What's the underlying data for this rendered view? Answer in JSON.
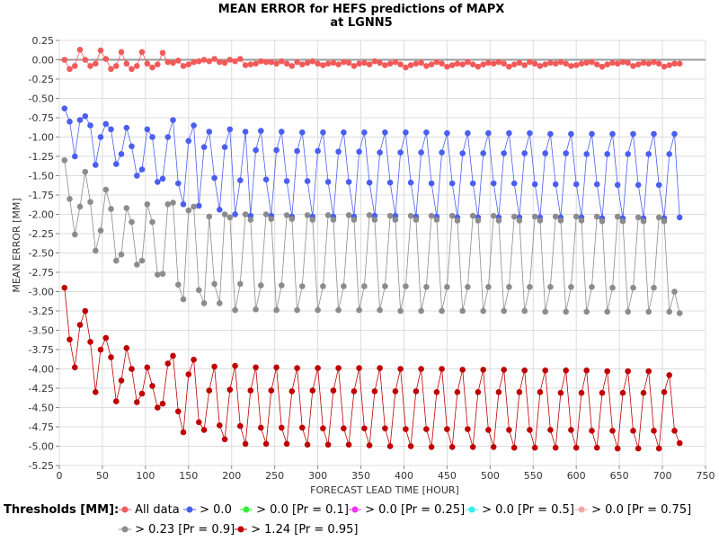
{
  "chart_data": {
    "type": "scatter",
    "title": "MEAN ERROR for HEFS predictions of MAPX",
    "subtitle": "at LGNN5",
    "xlabel": "FORECAST LEAD TIME [HOUR]",
    "ylabel": "MEAN ERROR [MM]",
    "xlim": [
      0,
      750
    ],
    "ylim": [
      -5.25,
      0.25
    ],
    "xticks": [
      "0",
      "50",
      "100",
      "150",
      "200",
      "250",
      "300",
      "350",
      "400",
      "450",
      "500",
      "550",
      "600",
      "650",
      "700",
      "750"
    ],
    "yticks": [
      "0.25",
      "0.00",
      "-0.25",
      "-0.50",
      "-0.75",
      "-1.00",
      "-1.25",
      "-1.50",
      "-1.75",
      "-2.00",
      "-2.25",
      "-2.50",
      "-2.75",
      "-3.00",
      "-3.25",
      "-3.50",
      "-3.75",
      "-4.00",
      "-4.25",
      "-4.50",
      "-4.75",
      "-5.00",
      "-5.25"
    ],
    "reference_line_y": 0,
    "legend_title": "Thresholds [MM]:",
    "legend": [
      {
        "name": "All data",
        "color": "#f25a5a"
      },
      {
        "name": "> 0.0",
        "color": "#4a5ff0"
      },
      {
        "name": "> 0.0 [Pr = 0.1]",
        "color": "#33ee33"
      },
      {
        "name": "> 0.0 [Pr = 0.25]",
        "color": "#ee33ee"
      },
      {
        "name": "> 0.0 [Pr = 0.5]",
        "color": "#33eeee"
      },
      {
        "name": "> 0.0 [Pr = 0.75]",
        "color": "#f5a5a5"
      },
      {
        "name": "> 0.23 [Pr = 0.9]",
        "color": "#8c8c8c"
      },
      {
        "name": "> 1.24 [Pr = 0.95]",
        "color": "#c00000"
      }
    ],
    "series": [
      {
        "name": "All data",
        "color": "#f25a5a",
        "x": [
          6,
          12,
          18,
          24,
          30,
          36,
          42,
          48,
          54,
          60,
          66,
          72,
          78,
          84,
          90,
          96,
          102,
          108,
          114,
          120,
          126,
          132,
          138,
          144,
          150,
          156,
          162,
          168,
          174,
          180,
          186,
          192,
          198,
          204,
          210,
          216,
          222,
          228,
          234,
          240,
          246,
          252,
          258,
          264,
          270,
          276,
          282,
          288,
          294,
          300,
          306,
          312,
          318,
          324,
          330,
          336,
          342,
          348,
          354,
          360,
          366,
          372,
          378,
          384,
          390,
          396,
          402,
          408,
          414,
          420,
          426,
          432,
          438,
          444,
          450,
          456,
          462,
          468,
          474,
          480,
          486,
          492,
          498,
          504,
          510,
          516,
          522,
          528,
          534,
          540,
          546,
          552,
          558,
          564,
          570,
          576,
          582,
          588,
          594,
          600,
          606,
          612,
          618,
          624,
          630,
          636,
          642,
          648,
          654,
          660,
          666,
          672,
          678,
          684,
          690,
          696,
          702,
          708,
          714,
          720
        ],
        "y": [
          0.0,
          -0.12,
          -0.08,
          0.13,
          0.0,
          -0.08,
          -0.05,
          0.12,
          0.01,
          -0.12,
          -0.08,
          0.1,
          -0.05,
          -0.12,
          -0.08,
          0.1,
          -0.05,
          -0.1,
          -0.06,
          0.09,
          -0.03,
          -0.04,
          -0.01,
          -0.08,
          -0.06,
          -0.03,
          -0.02,
          0.0,
          -0.02,
          0.01,
          -0.03,
          -0.04,
          0.0,
          -0.02,
          0.01,
          -0.07,
          -0.06,
          -0.05,
          -0.02,
          -0.03,
          -0.03,
          -0.05,
          -0.02,
          -0.05,
          -0.08,
          -0.03,
          -0.06,
          -0.04,
          -0.02,
          -0.05,
          -0.07,
          -0.05,
          -0.04,
          -0.06,
          -0.03,
          -0.04,
          -0.08,
          -0.05,
          -0.04,
          -0.06,
          -0.02,
          -0.04,
          -0.07,
          -0.05,
          -0.03,
          -0.06,
          -0.1,
          -0.07,
          -0.05,
          -0.04,
          -0.08,
          -0.06,
          -0.03,
          -0.05,
          -0.09,
          -0.07,
          -0.05,
          -0.06,
          -0.03,
          -0.06,
          -0.09,
          -0.06,
          -0.04,
          -0.05,
          -0.03,
          -0.05,
          -0.09,
          -0.06,
          -0.04,
          -0.07,
          -0.03,
          -0.05,
          -0.08,
          -0.06,
          -0.04,
          -0.05,
          -0.03,
          -0.05,
          -0.08,
          -0.07,
          -0.05,
          -0.04,
          -0.03,
          -0.06,
          -0.09,
          -0.06,
          -0.04,
          -0.05,
          -0.03,
          -0.04,
          -0.08,
          -0.06,
          -0.04,
          -0.05,
          -0.03,
          -0.05,
          -0.09,
          -0.07,
          -0.05,
          -0.05
        ]
      },
      {
        "name": "> 0.0",
        "color": "#4a5ff0",
        "x": [
          6,
          12,
          18,
          24,
          30,
          36,
          42,
          48,
          54,
          60,
          66,
          72,
          78,
          84,
          90,
          96,
          102,
          108,
          114,
          120,
          126,
          132,
          138,
          144,
          150,
          156,
          162,
          168,
          174,
          180,
          186,
          192,
          198,
          204,
          210,
          216,
          222,
          228,
          234,
          240,
          246,
          252,
          258,
          264,
          270,
          276,
          282,
          288,
          294,
          300,
          306,
          312,
          318,
          324,
          330,
          336,
          342,
          348,
          354,
          360,
          366,
          372,
          378,
          384,
          390,
          396,
          402,
          408,
          414,
          420,
          426,
          432,
          438,
          444,
          450,
          456,
          462,
          468,
          474,
          480,
          486,
          492,
          498,
          504,
          510,
          516,
          522,
          528,
          534,
          540,
          546,
          552,
          558,
          564,
          570,
          576,
          582,
          588,
          594,
          600,
          606,
          612,
          618,
          624,
          630,
          636,
          642,
          648,
          654,
          660,
          666,
          672,
          678,
          684,
          690,
          696,
          702,
          708,
          714,
          720
        ],
        "y": [
          -0.63,
          -0.8,
          -1.25,
          -0.78,
          -0.73,
          -0.85,
          -1.36,
          -1.0,
          -0.83,
          -0.9,
          -1.35,
          -1.22,
          -0.88,
          -1.12,
          -1.5,
          -1.42,
          -0.9,
          -1.0,
          -1.58,
          -1.54,
          -1.0,
          -0.78,
          -1.6,
          -1.87,
          -1.05,
          -0.85,
          -1.89,
          -1.13,
          -0.93,
          -1.53,
          -1.94,
          -1.13,
          -0.9,
          -2.0,
          -1.56,
          -0.93,
          -2.02,
          -1.17,
          -0.92,
          -1.55,
          -2.02,
          -1.17,
          -0.93,
          -1.57,
          -2.03,
          -1.18,
          -0.94,
          -1.57,
          -2.03,
          -1.18,
          -0.94,
          -1.58,
          -2.03,
          -1.19,
          -0.94,
          -1.58,
          -2.03,
          -1.19,
          -0.94,
          -1.59,
          -2.02,
          -1.2,
          -0.94,
          -1.59,
          -2.02,
          -1.2,
          -0.94,
          -1.59,
          -2.03,
          -1.2,
          -0.94,
          -1.6,
          -2.03,
          -1.2,
          -0.95,
          -1.6,
          -2.04,
          -1.21,
          -0.95,
          -1.6,
          -2.04,
          -1.21,
          -0.95,
          -1.6,
          -2.04,
          -1.21,
          -0.95,
          -1.6,
          -2.04,
          -1.21,
          -0.95,
          -1.61,
          -2.04,
          -1.21,
          -0.96,
          -1.61,
          -2.04,
          -1.21,
          -0.96,
          -1.61,
          -2.04,
          -1.22,
          -0.96,
          -1.61,
          -2.05,
          -1.22,
          -0.96,
          -1.62,
          -2.05,
          -1.22,
          -0.96,
          -1.62,
          -2.05,
          -1.22,
          -0.96,
          -1.62,
          -2.05,
          -1.22,
          -0.96,
          -2.04
        ]
      },
      {
        "name": "> 0.23 [Pr = 0.9]",
        "color": "#8c8c8c",
        "x": [
          6,
          12,
          18,
          24,
          30,
          36,
          42,
          48,
          54,
          60,
          66,
          72,
          78,
          84,
          90,
          96,
          102,
          108,
          114,
          120,
          126,
          132,
          138,
          144,
          150,
          156,
          162,
          168,
          174,
          180,
          186,
          192,
          198,
          204,
          210,
          216,
          222,
          228,
          234,
          240,
          246,
          252,
          258,
          264,
          270,
          276,
          282,
          288,
          294,
          300,
          306,
          312,
          318,
          324,
          330,
          336,
          342,
          348,
          354,
          360,
          366,
          372,
          378,
          384,
          390,
          396,
          402,
          408,
          414,
          420,
          426,
          432,
          438,
          444,
          450,
          456,
          462,
          468,
          474,
          480,
          486,
          492,
          498,
          504,
          510,
          516,
          522,
          528,
          534,
          540,
          546,
          552,
          558,
          564,
          570,
          576,
          582,
          588,
          594,
          600,
          606,
          612,
          618,
          624,
          630,
          636,
          642,
          648,
          654,
          660,
          666,
          672,
          678,
          684,
          690,
          696,
          702,
          708,
          714,
          720
        ],
        "y": [
          -1.3,
          -1.8,
          -2.26,
          -1.9,
          -1.45,
          -1.84,
          -2.47,
          -2.21,
          -1.68,
          -1.93,
          -2.6,
          -2.52,
          -1.92,
          -2.1,
          -2.65,
          -2.6,
          -1.87,
          -2.1,
          -2.78,
          -2.77,
          -1.87,
          -1.85,
          -2.91,
          -3.1,
          -1.95,
          -1.9,
          -2.98,
          -3.15,
          -2.03,
          -2.9,
          -3.15,
          -2.0,
          -2.04,
          -3.24,
          -2.9,
          -2.0,
          -2.07,
          -3.23,
          -2.92,
          -2.0,
          -2.06,
          -3.24,
          -2.92,
          -2.01,
          -2.06,
          -3.24,
          -2.93,
          -2.01,
          -2.07,
          -3.24,
          -2.93,
          -2.01,
          -2.07,
          -3.24,
          -2.93,
          -2.01,
          -2.07,
          -3.24,
          -2.93,
          -2.01,
          -2.07,
          -3.24,
          -2.93,
          -2.02,
          -2.07,
          -3.25,
          -2.93,
          -2.02,
          -2.07,
          -3.25,
          -2.94,
          -2.02,
          -2.07,
          -3.25,
          -2.94,
          -2.02,
          -2.08,
          -3.25,
          -2.94,
          -2.02,
          -2.08,
          -3.25,
          -2.94,
          -2.02,
          -2.08,
          -3.25,
          -2.94,
          -2.03,
          -2.08,
          -3.25,
          -2.94,
          -2.03,
          -2.08,
          -3.26,
          -2.94,
          -2.03,
          -2.08,
          -3.26,
          -2.94,
          -2.03,
          -2.08,
          -3.26,
          -2.94,
          -2.03,
          -2.09,
          -3.26,
          -2.95,
          -2.03,
          -2.09,
          -3.26,
          -2.95,
          -2.04,
          -2.09,
          -3.26,
          -2.95,
          -2.04,
          -2.09,
          -3.26,
          -3.0,
          -3.28
        ]
      },
      {
        "name": "> 1.24 [Pr = 0.95]",
        "color": "#c00000",
        "x": [
          6,
          12,
          18,
          24,
          30,
          36,
          42,
          48,
          54,
          60,
          66,
          72,
          78,
          84,
          90,
          96,
          102,
          108,
          114,
          120,
          126,
          132,
          138,
          144,
          150,
          156,
          162,
          168,
          174,
          180,
          186,
          192,
          198,
          204,
          210,
          216,
          222,
          228,
          234,
          240,
          246,
          252,
          258,
          264,
          270,
          276,
          282,
          288,
          294,
          300,
          306,
          312,
          318,
          324,
          330,
          336,
          342,
          348,
          354,
          360,
          366,
          372,
          378,
          384,
          390,
          396,
          402,
          408,
          414,
          420,
          426,
          432,
          438,
          444,
          450,
          456,
          462,
          468,
          474,
          480,
          486,
          492,
          498,
          504,
          510,
          516,
          522,
          528,
          534,
          540,
          546,
          552,
          558,
          564,
          570,
          576,
          582,
          588,
          594,
          600,
          606,
          612,
          618,
          624,
          630,
          636,
          642,
          648,
          654,
          660,
          666,
          672,
          678,
          684,
          690,
          696,
          702,
          708,
          714,
          720
        ],
        "y": [
          -2.95,
          -3.62,
          -3.98,
          -3.43,
          -3.25,
          -3.65,
          -4.3,
          -3.75,
          -3.6,
          -3.85,
          -4.42,
          -4.15,
          -3.73,
          -4.0,
          -4.43,
          -4.32,
          -3.98,
          -4.22,
          -4.5,
          -4.45,
          -3.93,
          -3.83,
          -4.55,
          -4.82,
          -4.07,
          -3.88,
          -4.69,
          -4.79,
          -4.28,
          -3.97,
          -4.73,
          -4.91,
          -4.27,
          -3.96,
          -4.74,
          -4.97,
          -4.28,
          -3.98,
          -4.76,
          -4.97,
          -4.28,
          -3.98,
          -4.76,
          -4.97,
          -4.29,
          -3.99,
          -4.76,
          -4.98,
          -4.28,
          -3.99,
          -4.77,
          -4.98,
          -4.28,
          -3.99,
          -4.77,
          -4.98,
          -4.29,
          -3.99,
          -4.77,
          -4.99,
          -4.29,
          -3.99,
          -4.77,
          -5.0,
          -4.29,
          -4.0,
          -4.78,
          -5.0,
          -4.29,
          -4.0,
          -4.78,
          -5.01,
          -4.3,
          -4.0,
          -4.78,
          -5.01,
          -4.3,
          -4.01,
          -4.78,
          -5.01,
          -4.3,
          -4.01,
          -4.79,
          -5.01,
          -4.3,
          -4.01,
          -4.79,
          -5.02,
          -4.3,
          -4.02,
          -4.79,
          -5.02,
          -4.3,
          -4.02,
          -4.79,
          -5.02,
          -4.31,
          -4.02,
          -4.79,
          -5.02,
          -4.31,
          -4.02,
          -4.8,
          -5.02,
          -4.31,
          -4.03,
          -4.8,
          -5.03,
          -4.31,
          -4.03,
          -4.8,
          -5.03,
          -4.31,
          -4.03,
          -4.8,
          -5.03,
          -4.3,
          -4.08,
          -4.8,
          -4.96
        ]
      }
    ]
  }
}
